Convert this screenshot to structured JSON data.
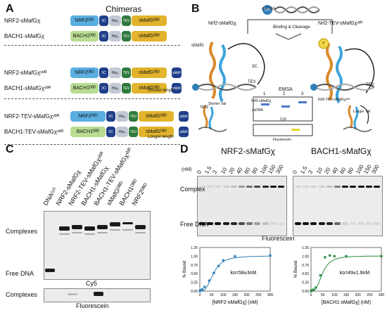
{
  "panelA": {
    "letter": "A",
    "title": "Chimeras",
    "rows": [
      {
        "label": "NRF2-sMafGχ",
        "dbd": "NRF2ᴰᴮᴰ",
        "dbd_color": "#5aaee0"
      },
      {
        "label": "BACH1-sMafGχ",
        "dbd": "BACH1ᴰᴮᴰ",
        "dbd_color": "#b9dc93"
      },
      {
        "label": "NRF2-sMafGχʸᵇᴿ",
        "dbd": "NRF2ᴰᴮᴰ",
        "dbd_color": "#5aaee0"
      },
      {
        "label": "BACH1-sMafGχʸᵇᴿ",
        "dbd": "BACH1ᴰᴮᴰ",
        "dbd_color": "#b9dc93"
      },
      {
        "label": "NRF2-TEV-sMafGχʸᵇᴿ",
        "dbd": "NRF2ᴰᴮᴰ",
        "dbd_color": "#5aaee0"
      },
      {
        "label": "BACH1-TEV-sMafGχʸᵇᴿ",
        "dbd": "BACH1ᴰᴮᴰ",
        "dbd_color": "#b9dc93"
      }
    ],
    "domain_3c": "3C",
    "domain_his": "His₆",
    "domain_tev": "TEV",
    "domain_smafg": "sMafGᴰᴮᴰ",
    "domain_ybbr": "ybbR",
    "note_shorter": "Shorter length",
    "note_longer": "Longer length"
  },
  "panelB": {
    "letter": "B",
    "dsdna": "dsDNA",
    "cy5": "Cy5",
    "binding": "Binding & Cleavage",
    "left_title": "Nrf2-sMafGχ",
    "right_title": "Nrf2-TEV-sMafGχʸᵇᴿ",
    "smafg": "sMafG",
    "nrf2": "Nrf2",
    "three_c": "3C",
    "tev_left": "TEV",
    "tev_right": "TEV",
    "emsa": "EMSA",
    "lanes": [
      "1",
      "2",
      "3"
    ],
    "band_label_top": "Nrf2-sMafGχ",
    "band_label_3": "Nrf2-TEV-sMafGχʸᵇᴿ",
    "band_label_dsdna": "dsDNA",
    "gel_cy5": "Cy5",
    "gel_fluor": "Fluorescein",
    "shorter_tail": "Shorter Tail",
    "longer_tail": "Longer Tail",
    "y_badge": "Y"
  },
  "panelC": {
    "letter": "C",
    "lanes": [
      "DNAᶜʸ⁵",
      "NRF2-sMafGχ",
      "NRF2-TEV-sMafGχʸᵇᴿ",
      "BACH1-sMafGχ",
      "BACH1-TEV-sMafGχʸᵇᴿ",
      "sMafGᴰᴮᴰ",
      "BACH1ᴰᴮᴰ",
      "NRF2ᴰᴮᴰ"
    ],
    "complexes": "Complexes",
    "free_dna": "Free DNA",
    "cy5": "Cy5",
    "complexes2": "Complexes",
    "fluorescein": "Fluorescein"
  },
  "panelD": {
    "letter": "D",
    "left_title": "NRF2-sMafGχ",
    "right_title": "BACH1-sMafGχ",
    "unit": "(nM)",
    "concentrations": [
      "0",
      "1.5",
      "3",
      "10",
      "20",
      "40",
      "60",
      "80",
      "100",
      "150",
      "300"
    ],
    "complex": "Complex",
    "free_dna": "Free DNA",
    "fluorescein": "Fluorescein",
    "ylabel": "% Bound",
    "left_kd": "kᴅ=58±3nM",
    "right_kd": "kᴅ=49±1.9nM",
    "left_xlabel": "[NRF2-sMafGχ] (nM)",
    "right_xlabel": "[BACH1-sMafGχ] (nM)",
    "yticks": [
      "0.00",
      "0.25",
      "0.50",
      "0.75",
      "1.00",
      "1.25"
    ],
    "xticks": [
      "0",
      "50",
      "100",
      "150",
      "200",
      "250",
      "300"
    ]
  },
  "chart_data": [
    {
      "type": "scatter",
      "ylabel": "% Bound",
      "xlabel": "[NRF2-sMafGχ] (nM)",
      "xlim": [
        0,
        300
      ],
      "ylim": [
        0,
        1.25
      ],
      "x": [
        0,
        1.5,
        3,
        10,
        20,
        40,
        60,
        80,
        100,
        150,
        300
      ],
      "values": [
        0.0,
        0.01,
        0.02,
        0.05,
        0.12,
        0.3,
        0.52,
        0.72,
        0.88,
        1.0,
        1.02
      ],
      "color": "#2f7fb8"
    },
    {
      "type": "scatter",
      "ylabel": "% Bound",
      "xlabel": "[BACH1-sMafGχ] (nM)",
      "xlim": [
        0,
        300
      ],
      "ylim": [
        0,
        1.25
      ],
      "x": [
        0,
        1.5,
        3,
        10,
        20,
        40,
        60,
        80,
        100,
        150,
        300
      ],
      "values": [
        0.0,
        0.01,
        0.02,
        0.04,
        0.1,
        0.45,
        0.97,
        1.02,
        1.0,
        1.0,
        1.0
      ],
      "color": "#2c8a3e"
    }
  ]
}
